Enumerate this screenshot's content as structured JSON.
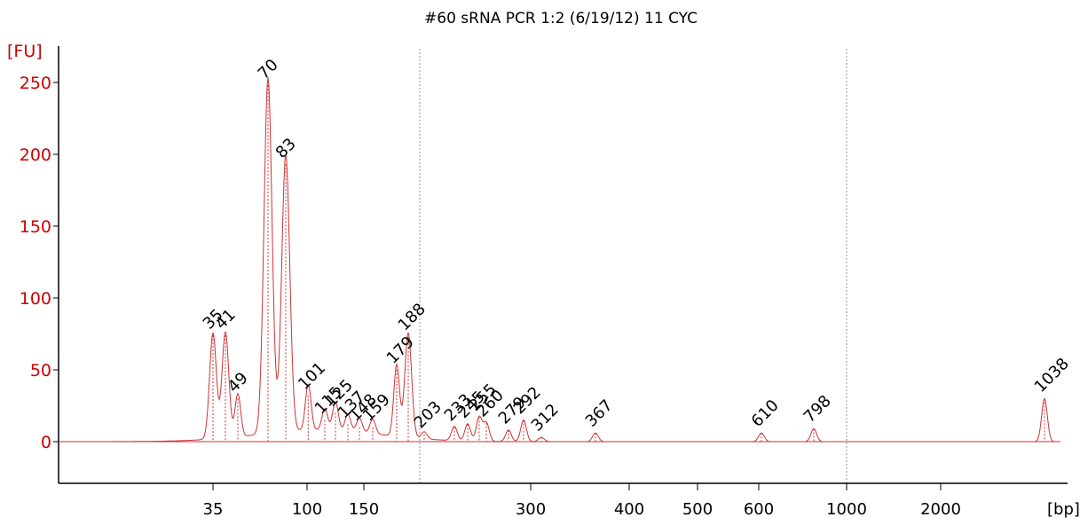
{
  "chart_data": {
    "type": "line",
    "title": "#60 sRNA PCR 1:2 (6/19/12) 11 CYC",
    "ylabel": "[FU]",
    "xlabel": "[bp]",
    "ylim": [
      -28,
      275
    ],
    "y_ticks": [
      0,
      50,
      100,
      150,
      200,
      250
    ],
    "x_tick_labels": [
      "35",
      "100",
      "150",
      "300",
      "400",
      "500",
      "600",
      "1000",
      "2000"
    ],
    "x_ticks_bp": [
      35,
      100,
      150,
      300,
      400,
      500,
      600,
      1000,
      2000
    ],
    "x_gridlines_bp": [
      200,
      1000
    ],
    "colors": {
      "trace": "#cc3333",
      "axis": "#cc0000",
      "lower_marker": "#008000",
      "upper_marker": "#8a2be2",
      "grid": "#999999"
    },
    "peaks": [
      {
        "label": "35",
        "bp": 35,
        "fu": 74,
        "marker": "lower"
      },
      {
        "label": "41",
        "bp": 41,
        "fu": 74
      },
      {
        "label": "49",
        "bp": 49,
        "fu": 30
      },
      {
        "label": "70",
        "bp": 70,
        "fu": 248
      },
      {
        "label": "83",
        "bp": 83,
        "fu": 193
      },
      {
        "label": "101",
        "bp": 101,
        "fu": 32
      },
      {
        "label": "115",
        "bp": 115,
        "fu": 15
      },
      {
        "label": "125",
        "bp": 125,
        "fu": 20
      },
      {
        "label": "137",
        "bp": 137,
        "fu": 12
      },
      {
        "label": "148",
        "bp": 148,
        "fu": 10
      },
      {
        "label": "159",
        "bp": 159,
        "fu": 10
      },
      {
        "label": "179",
        "bp": 179,
        "fu": 50
      },
      {
        "label": "188",
        "bp": 188,
        "fu": 73
      },
      {
        "label": "203",
        "bp": 203,
        "fu": 5
      },
      {
        "label": "233",
        "bp": 233,
        "fu": 10
      },
      {
        "label": "245",
        "bp": 245,
        "fu": 12
      },
      {
        "label": "255",
        "bp": 255,
        "fu": 17
      },
      {
        "label": "260",
        "bp": 260,
        "fu": 13
      },
      {
        "label": "279",
        "bp": 279,
        "fu": 8
      },
      {
        "label": "292",
        "bp": 292,
        "fu": 15
      },
      {
        "label": "312",
        "bp": 312,
        "fu": 3
      },
      {
        "label": "367",
        "bp": 367,
        "fu": 6
      },
      {
        "label": "610",
        "bp": 610,
        "fu": 6
      },
      {
        "label": "798",
        "bp": 798,
        "fu": 9
      },
      {
        "label": "1038",
        "bp": 1038,
        "fu": 30,
        "marker": "upper"
      }
    ]
  }
}
